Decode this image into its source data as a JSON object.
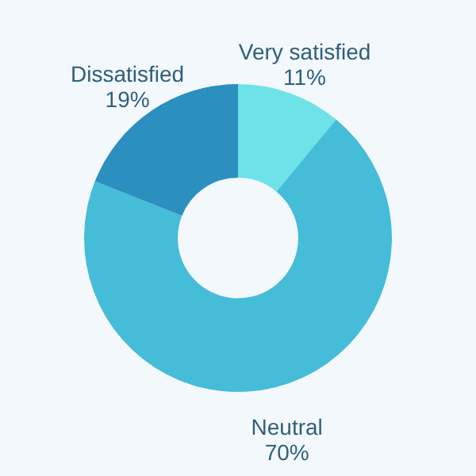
{
  "chart_data": {
    "type": "donut",
    "categories": [
      "Very satisfied",
      "Neutral",
      "Dissatisfied"
    ],
    "values": [
      11,
      70,
      19
    ],
    "value_labels": [
      "11%",
      "70%",
      "19%"
    ],
    "colors": [
      "#6de3e8",
      "#45bcd8",
      "#2b8fbf"
    ],
    "legend": false
  }
}
